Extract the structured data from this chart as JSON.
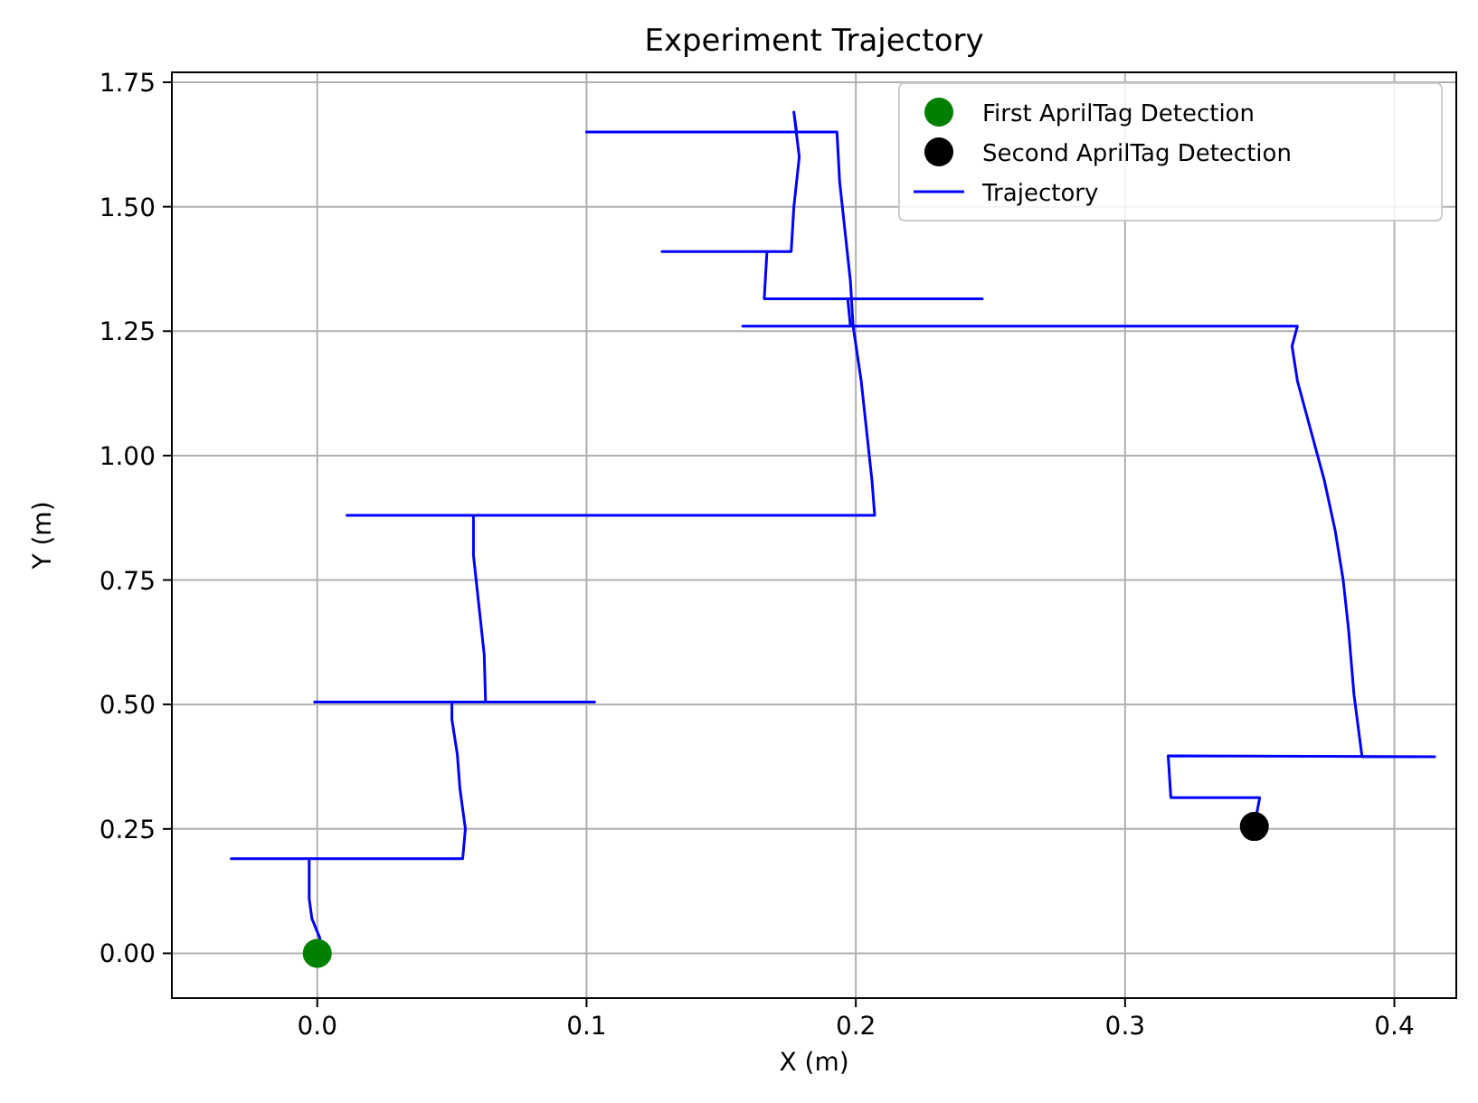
{
  "chart_data": {
    "type": "line",
    "title": "Experiment Trajectory",
    "xlabel": "X (m)",
    "ylabel": "Y (m)",
    "xlim": [
      -0.054,
      0.423
    ],
    "ylim": [
      -0.09,
      1.77
    ],
    "xticks": [
      {
        "value": 0,
        "label": "0.0"
      },
      {
        "value": 0.1,
        "label": "0.1"
      },
      {
        "value": 0.2,
        "label": "0.2"
      },
      {
        "value": 0.3,
        "label": "0.3"
      },
      {
        "value": 0.4,
        "label": "0.4"
      }
    ],
    "yticks": [
      {
        "value": 0,
        "label": "0.00"
      },
      {
        "value": 0.25,
        "label": "0.25"
      },
      {
        "value": 0.5,
        "label": "0.50"
      },
      {
        "value": 0.75,
        "label": "0.75"
      },
      {
        "value": 1,
        "label": "1.00"
      },
      {
        "value": 1.25,
        "label": "1.25"
      },
      {
        "value": 1.5,
        "label": "1.50"
      },
      {
        "value": 1.75,
        "label": "1.75"
      }
    ],
    "grid": true,
    "legend": "top right",
    "series": [
      {
        "name": "First AprilTag Detection",
        "type": "scatter",
        "marker": "circle",
        "color": "#008000",
        "x": [
          0
        ],
        "values": [
          0
        ]
      },
      {
        "name": "Second AprilTag Detection",
        "type": "scatter",
        "marker": "circle",
        "color": "#000000",
        "x": [
          0.348
        ],
        "values": [
          0.255
        ]
      },
      {
        "name": "Trajectory",
        "color": "#0000ff",
        "line_style": "solid",
        "x": [
          0,
          0.001,
          -0.002,
          -0.003,
          -0.003,
          -0.032,
          0.054,
          0.055,
          0.053,
          0.052,
          0.05,
          0.05,
          -0.001,
          0.103,
          0.0625,
          0.062,
          0.06,
          0.058,
          0.058,
          0.011,
          0.207,
          0.206,
          0.204,
          0.202,
          0.199,
          0.198,
          0.196,
          0.194,
          0.193,
          0.1,
          0.178,
          0.177,
          0.179,
          0.177,
          0.176,
          0.128,
          0.167,
          0.166,
          0.247,
          0.197,
          0.198,
          0.158,
          0.364,
          0.362,
          0.364,
          0.369,
          0.374,
          0.378,
          0.381,
          0.383,
          0.385,
          0.388,
          0.415,
          0.316,
          0.317,
          0.35,
          0.348
        ],
        "values": [
          0,
          0.03,
          0.07,
          0.11,
          0.19,
          0.19,
          0.19,
          0.25,
          0.33,
          0.4,
          0.47,
          0.505,
          0.505,
          0.505,
          0.505,
          0.6,
          0.7,
          0.8,
          0.88,
          0.88,
          0.88,
          0.95,
          1.05,
          1.15,
          1.26,
          1.35,
          1.45,
          1.55,
          1.65,
          1.65,
          1.65,
          1.69,
          1.6,
          1.5,
          1.41,
          1.41,
          1.41,
          1.315,
          1.315,
          1.315,
          1.26,
          1.26,
          1.26,
          1.22,
          1.15,
          1.05,
          0.95,
          0.85,
          0.75,
          0.65,
          0.52,
          0.395,
          0.395,
          0.397,
          0.313,
          0.313,
          0.255
        ]
      }
    ]
  }
}
